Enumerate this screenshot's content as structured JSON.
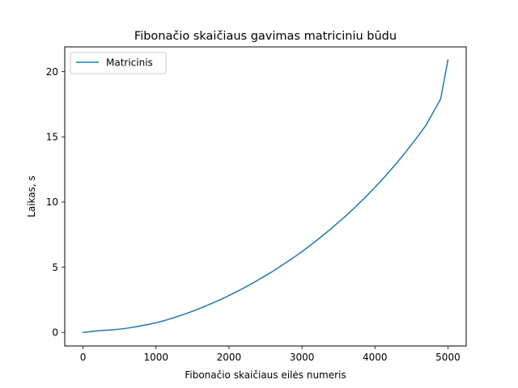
{
  "chart_data": {
    "type": "line",
    "title": "Fibonačio skaičiaus gavimas matriciniu būdu",
    "xlabel": "Fibonačio skaičiaus eilės numeris",
    "ylabel": "Laikas, s",
    "xlim": [
      -250,
      5250
    ],
    "ylim": [
      -1.04,
      21.9
    ],
    "xticks": [
      0,
      1000,
      2000,
      3000,
      4000,
      5000
    ],
    "xtick_labels": [
      "0",
      "1000",
      "2000",
      "3000",
      "4000",
      "5000"
    ],
    "yticks": [
      0,
      5,
      10,
      15,
      20
    ],
    "ytick_labels": [
      "0",
      "5",
      "10",
      "15",
      "20"
    ],
    "grid": false,
    "legend_position": "top-left",
    "series": [
      {
        "name": "Matricinis",
        "color": "#1f77b4",
        "x": [
          0,
          100,
          150,
          200,
          300,
          400,
          500,
          600,
          700,
          800,
          900,
          1000,
          1100,
          1200,
          1300,
          1400,
          1500,
          1600,
          1700,
          1800,
          1900,
          2000,
          2100,
          2200,
          2300,
          2400,
          2500,
          2600,
          2700,
          2800,
          2900,
          3000,
          3100,
          3200,
          3300,
          3400,
          3500,
          3600,
          3700,
          3800,
          3900,
          4000,
          4100,
          4200,
          4300,
          4400,
          4500,
          4600,
          4700,
          4800,
          4900,
          5000
        ],
        "y": [
          0.0,
          0.05,
          0.1,
          0.12,
          0.16,
          0.2,
          0.25,
          0.32,
          0.41,
          0.51,
          0.62,
          0.74,
          0.88,
          1.05,
          1.23,
          1.42,
          1.62,
          1.84,
          2.07,
          2.31,
          2.56,
          2.83,
          3.11,
          3.4,
          3.7,
          4.02,
          4.35,
          4.69,
          5.05,
          5.42,
          5.8,
          6.2,
          6.62,
          7.05,
          7.5,
          7.96,
          8.44,
          8.93,
          9.45,
          9.99,
          10.55,
          11.13,
          11.73,
          12.36,
          13.01,
          13.69,
          14.4,
          15.13,
          15.9,
          16.9,
          17.9,
          20.9
        ]
      }
    ]
  }
}
